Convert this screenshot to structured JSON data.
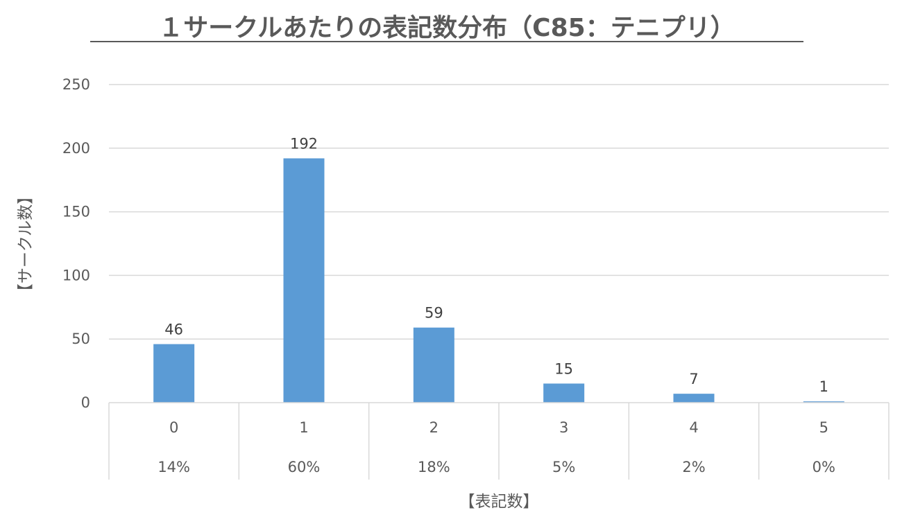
{
  "chart_data": {
    "type": "bar",
    "title": "１サークルあたりの表記数分布（C85：テニプリ）",
    "xlabel": "【表記数】",
    "ylabel": "【サークル数】",
    "categories": [
      "0",
      "1",
      "2",
      "3",
      "4",
      "5"
    ],
    "percentages": [
      "14%",
      "60%",
      "18%",
      "5%",
      "2%",
      "0%"
    ],
    "values": [
      46,
      192,
      59,
      15,
      7,
      1
    ],
    "yticks": [
      0,
      50,
      100,
      150,
      200,
      250
    ],
    "ylim": [
      0,
      250
    ],
    "grid": true,
    "legend": "none",
    "bar_color": "#5b9bd5",
    "gridline_color": "#d9d9d9",
    "text_color": "#595959"
  }
}
